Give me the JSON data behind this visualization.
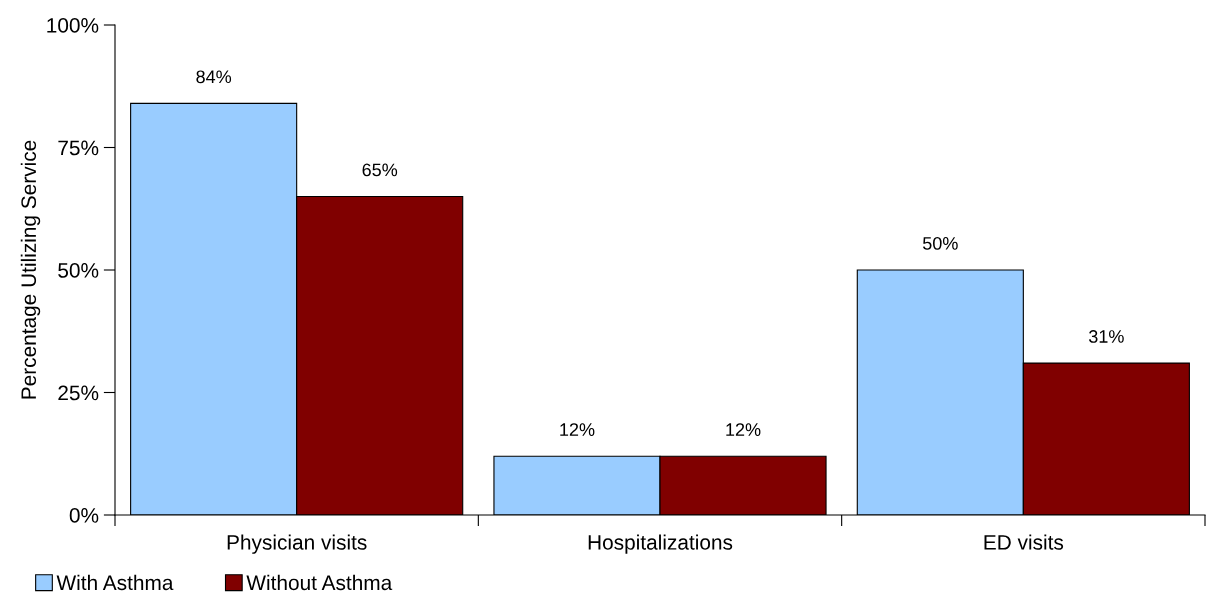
{
  "chart_data": {
    "type": "bar",
    "ylabel": "Percentage Utilizing Service",
    "categories": [
      "Physician visits",
      "Hospitalizations",
      "ED visits"
    ],
    "series": [
      {
        "name": "With Asthma",
        "color": "#99ccff",
        "values": [
          84,
          12,
          50
        ],
        "value_labels": [
          "84%",
          "12%",
          "50%"
        ]
      },
      {
        "name": "Without Asthma",
        "color": "#800000",
        "values": [
          65,
          12,
          31
        ],
        "value_labels": [
          "65%",
          "12%",
          "31%"
        ]
      }
    ],
    "ylim": [
      0,
      100
    ],
    "yticks": [
      {
        "value": 0,
        "label": "0%"
      },
      {
        "value": 25,
        "label": "25%"
      },
      {
        "value": 50,
        "label": "50%"
      },
      {
        "value": 75,
        "label": "75%"
      },
      {
        "value": 100,
        "label": "100%"
      }
    ],
    "grid": false,
    "legend": "bottom left"
  }
}
